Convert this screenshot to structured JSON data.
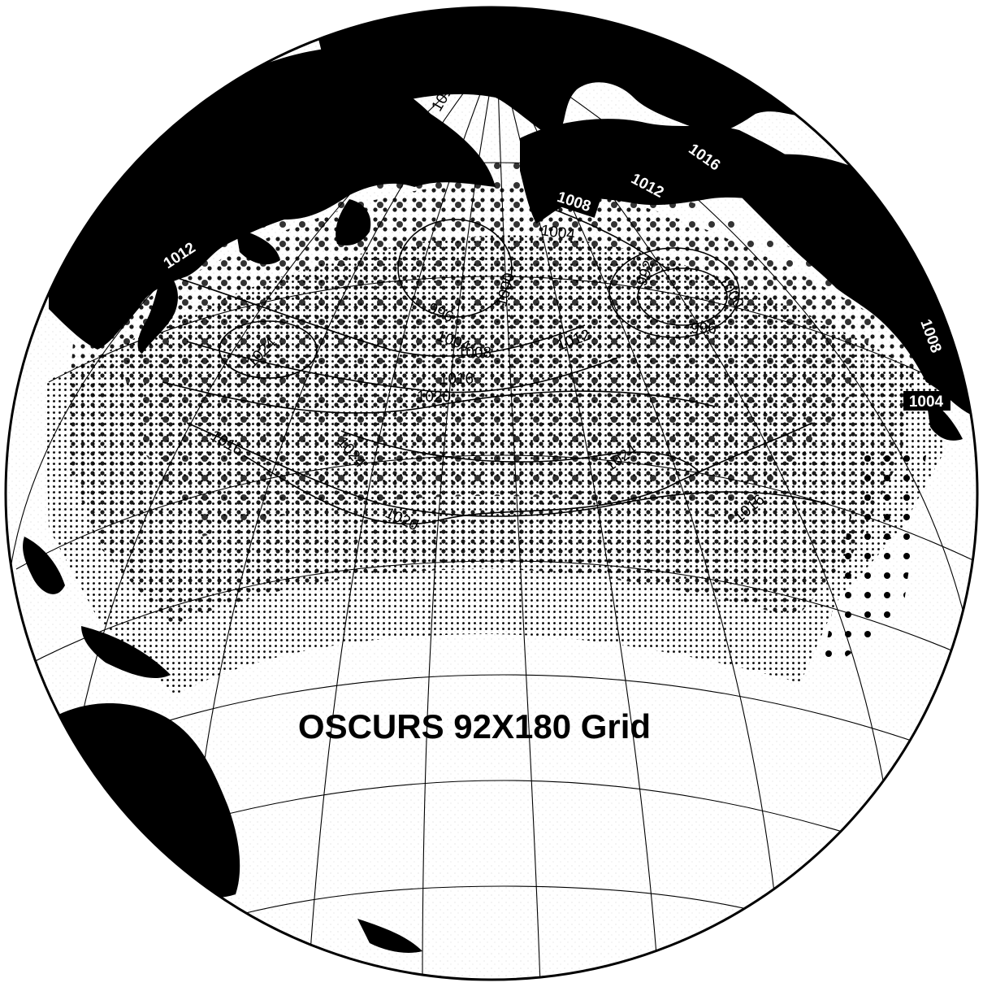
{
  "map": {
    "title": "OSCURS 92X180 Grid",
    "contour_labels": [
      {
        "id": "c1012-nw",
        "text": "1012",
        "boxed": true
      },
      {
        "id": "c1012-pole",
        "text": "1012",
        "boxed": false
      },
      {
        "id": "c1016-ne",
        "text": "1016",
        "boxed": true
      },
      {
        "id": "c1012-ne",
        "text": "1012",
        "boxed": true
      },
      {
        "id": "c1008-bering",
        "text": "1008",
        "boxed": true
      },
      {
        "id": "c1004-bering",
        "text": "1004",
        "boxed": false
      },
      {
        "id": "c1000-center",
        "text": "1000",
        "boxed": false
      },
      {
        "id": "c992-east",
        "text": "992",
        "boxed": false
      },
      {
        "id": "c1000-east",
        "text": "1000",
        "boxed": false
      },
      {
        "id": "c996-east",
        "text": "996",
        "boxed": false
      },
      {
        "id": "c996-center",
        "text": "996",
        "boxed": false
      },
      {
        "id": "c1004-center",
        "text": "1004",
        "boxed": false
      },
      {
        "id": "c1008-center",
        "text": "1008",
        "boxed": false
      },
      {
        "id": "c1012-center",
        "text": "1012",
        "boxed": false
      },
      {
        "id": "c1016-center",
        "text": "1016",
        "boxed": false
      },
      {
        "id": "c1020-center",
        "text": "1020",
        "boxed": false
      },
      {
        "id": "c1024-west",
        "text": "1024",
        "boxed": false
      },
      {
        "id": "c1008-coast",
        "text": "1008",
        "boxed": true
      },
      {
        "id": "c1004-coast",
        "text": "1004",
        "boxed": true
      },
      {
        "id": "c1016-west",
        "text": "1016",
        "boxed": false
      },
      {
        "id": "c1024-mid",
        "text": "1024",
        "boxed": false
      },
      {
        "id": "c1024-east",
        "text": "1024",
        "boxed": false
      },
      {
        "id": "c1020-south",
        "text": "1020",
        "boxed": false
      },
      {
        "id": "c1016-east",
        "text": "1016",
        "boxed": false
      }
    ],
    "colors": {
      "land": "#000000",
      "ocean": "#ffffff",
      "grid_dots": "#000000",
      "graticule": "#000000"
    }
  }
}
